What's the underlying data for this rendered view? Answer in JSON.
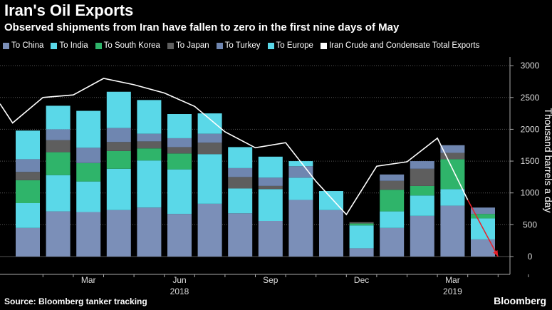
{
  "header": {
    "title": "Iran's Oil Exports",
    "subtitle": "Observed shipments from Iran have fallen to zero in the first nine days of May"
  },
  "footer": {
    "source": "Source: Bloomberg tanker tracking",
    "brand": "Bloomberg"
  },
  "chart_data": {
    "type": "bar",
    "stacked": true,
    "ylabel": "Thousand barrels a day",
    "yticks": [
      0,
      500,
      1000,
      1500,
      2000,
      2500,
      3000
    ],
    "ylim": [
      -280,
      3080
    ],
    "y_axis_side": "right",
    "grid": "horizontal dotted",
    "legend_position": "top",
    "categories": [
      "2018-01",
      "2018-02",
      "2018-03",
      "2018-04",
      "2018-05",
      "2018-06",
      "2018-07",
      "2018-08",
      "2018-09",
      "2018-10",
      "2018-11",
      "2018-12",
      "2019-01",
      "2019-02",
      "2019-03",
      "2019-04",
      "2019-05"
    ],
    "x_tick_labels": [
      {
        "label": "Mar",
        "category_index": 2
      },
      {
        "label": "Jun",
        "category_index": 5
      },
      {
        "label": "Sep",
        "category_index": 8
      },
      {
        "label": "Dec",
        "category_index": 11
      },
      {
        "label": "Mar",
        "category_index": 14
      }
    ],
    "x_year_labels": [
      {
        "label": "2018",
        "category_index": 5
      },
      {
        "label": "2019",
        "category_index": 14
      }
    ],
    "series": [
      {
        "name": "To China",
        "color": "#7b8fb8",
        "values": [
          450,
          710,
          700,
          730,
          770,
          670,
          830,
          680,
          560,
          890,
          730,
          130,
          450,
          640,
          800,
          270,
          0
        ]
      },
      {
        "name": "To India",
        "color": "#5ad8e8",
        "values": [
          390,
          570,
          480,
          650,
          740,
          700,
          780,
          390,
          500,
          350,
          300,
          360,
          260,
          320,
          260,
          330,
          0
        ]
      },
      {
        "name": "To South Korea",
        "color": "#2fb46a",
        "values": [
          360,
          360,
          290,
          280,
          190,
          250,
          0,
          0,
          0,
          0,
          0,
          30,
          340,
          150,
          470,
          70,
          0
        ]
      },
      {
        "name": "To Japan",
        "color": "#5e5e5e",
        "values": [
          130,
          190,
          0,
          140,
          110,
          100,
          180,
          180,
          50,
          0,
          0,
          20,
          140,
          270,
          100,
          0,
          0
        ]
      },
      {
        "name": "To Turkey",
        "color": "#6f86b0",
        "values": [
          200,
          170,
          240,
          220,
          120,
          140,
          140,
          140,
          130,
          180,
          0,
          0,
          100,
          120,
          120,
          100,
          0
        ]
      },
      {
        "name": "To Europe",
        "color": "#5ad8e8",
        "values": [
          450,
          370,
          580,
          570,
          530,
          380,
          320,
          330,
          330,
          80,
          0,
          0,
          0,
          0,
          0,
          0,
          0
        ]
      },
      {
        "name": "Iran Crude and Condensate Total Exports",
        "type": "line",
        "color": "#ffffff",
        "x_offsets": [
          -1,
          -0.5,
          0.5,
          1.5,
          2.5,
          3.5,
          4.5,
          5.5,
          6.5,
          7.5,
          8.5,
          9.5,
          10.5,
          11.5,
          12.5,
          13.5,
          14.5,
          15.5
        ],
        "values": [
          2400,
          2100,
          2500,
          2540,
          2800,
          2700,
          2570,
          2360,
          1960,
          1710,
          1790,
          1180,
          660,
          1420,
          1490,
          1860,
          890,
          0
        ]
      }
    ],
    "annotations": [
      {
        "type": "arrow",
        "color": "#e8202a",
        "from": {
          "x_offset": 14.5,
          "y": 890
        },
        "to": {
          "x_offset": 15.5,
          "y": 0
        }
      }
    ]
  }
}
